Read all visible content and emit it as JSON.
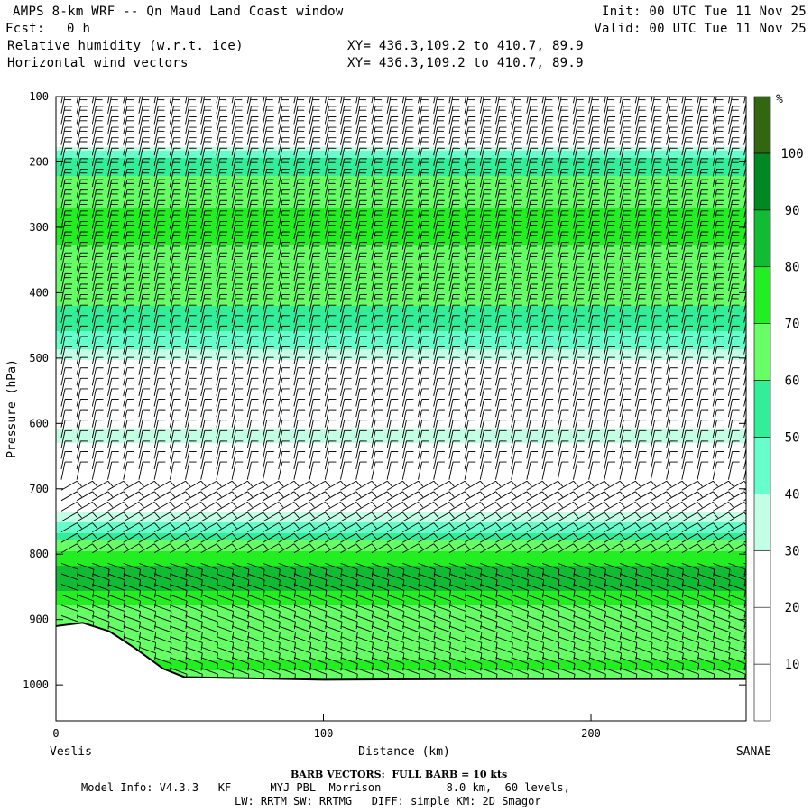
{
  "header": {
    "title": "AMPS 8-km WRF -- Qn Maud Land Coast window",
    "fcst_label": "Fcst:",
    "fcst_value": "0 h",
    "init": "Init: 00 UTC Tue 11 Nov 25",
    "valid": "Valid: 00 UTC Tue 11 Nov 25",
    "field1": "Relative humidity (w.r.t. ice)",
    "field2": "Horizontal wind vectors",
    "xy1": "XY= 436.3,109.2 to 410.7, 89.9",
    "xy2": "XY= 436.3,109.2 to 410.7, 89.9"
  },
  "footer": {
    "barb_note": "BARB VECTORS:  FULL BARB = 10 kts",
    "model_info": "Model Info: V4.3.3   KF      MYJ PBL  Morrison          8.0 km,  60 levels,",
    "physics": "LW: RRTM SW: RRTMG   DIFF: simple KM: 2D Smagor"
  },
  "chart_data": {
    "type": "heatmap",
    "title": "Relative humidity (w.r.t. ice)",
    "xlabel": "Distance (km)",
    "ylabel": "Pressure (hPa)",
    "x_ticks": [
      0,
      100,
      200
    ],
    "xlim": [
      0,
      258
    ],
    "y_ticks": [
      100,
      200,
      300,
      400,
      500,
      600,
      700,
      800,
      900,
      1000
    ],
    "ylim": [
      100,
      1055
    ],
    "left_endpoint": "Veslis",
    "right_endpoint": "SANAE",
    "colorbar": {
      "unit": "%",
      "levels": [
        10,
        20,
        30,
        40,
        50,
        60,
        70,
        80,
        90,
        100
      ],
      "colors": [
        "#ffffff",
        "#ffffff",
        "#ffffff",
        "#c2ffe5",
        "#66ffcc",
        "#33ee99",
        "#66ff66",
        "#22ee22",
        "#11bb33",
        "#008822",
        "#336611"
      ]
    },
    "rh_profile": [
      {
        "p": 100,
        "rh": 15
      },
      {
        "p": 170,
        "rh": 20
      },
      {
        "p": 185,
        "rh": 40
      },
      {
        "p": 200,
        "rh": 55
      },
      {
        "p": 240,
        "rh": 65
      },
      {
        "p": 300,
        "rh": 75
      },
      {
        "p": 350,
        "rh": 65
      },
      {
        "p": 420,
        "rh": 60
      },
      {
        "p": 480,
        "rh": 45
      },
      {
        "p": 520,
        "rh": 20
      },
      {
        "p": 580,
        "rh": 18
      },
      {
        "p": 620,
        "rh": 35
      },
      {
        "p": 660,
        "rh": 15
      },
      {
        "p": 720,
        "rh": 20
      },
      {
        "p": 760,
        "rh": 45
      },
      {
        "p": 800,
        "rh": 75
      },
      {
        "p": 840,
        "rh": 88
      },
      {
        "p": 880,
        "rh": 70
      },
      {
        "p": 930,
        "rh": 60
      },
      {
        "p": 970,
        "rh": 72
      },
      {
        "p": 1000,
        "rh": 65
      }
    ],
    "terrain_km_hpa": [
      [
        0,
        910
      ],
      [
        10,
        905
      ],
      [
        20,
        918
      ],
      [
        30,
        945
      ],
      [
        40,
        975
      ],
      [
        48,
        988
      ],
      [
        60,
        989
      ],
      [
        100,
        992
      ],
      [
        150,
        991
      ],
      [
        200,
        991
      ],
      [
        258,
        991
      ]
    ],
    "barb_vectors": "FULL BARB = 10 kts"
  }
}
